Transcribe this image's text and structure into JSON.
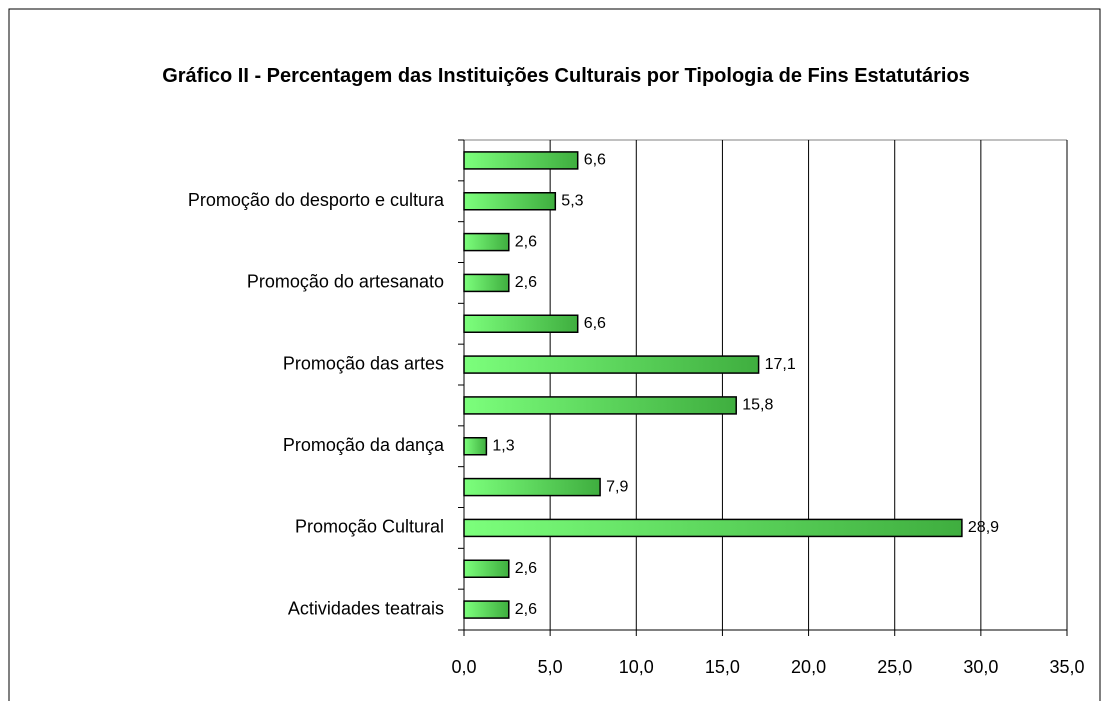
{
  "chart_data": {
    "type": "barh",
    "title": "Gráfico II - Percentagem das Instituições Culturais por Tipologia de Fins Estatutários",
    "categories": [
      null,
      "Promoção do desporto e cultura",
      null,
      "Promoção do artesanato",
      null,
      "Promoção das artes",
      null,
      "Promoção da dança",
      null,
      "Promoção Cultural",
      null,
      "Actividades teatrais"
    ],
    "values": [
      6.6,
      5.3,
      2.6,
      2.6,
      6.6,
      17.1,
      15.8,
      1.3,
      7.9,
      28.9,
      2.6,
      2.6
    ],
    "value_labels": [
      "6,6",
      "5,3",
      "2,6",
      "2,6",
      "6,6",
      "17,1",
      "15,8",
      "1,3",
      "7,9",
      "28,9",
      "2,6",
      "2,6"
    ],
    "color": "#3fae3f",
    "xlim": [
      0,
      35
    ],
    "xticks": [
      {
        "value": 0,
        "label": "0,0"
      },
      {
        "value": 5,
        "label": "5,0"
      },
      {
        "value": 10,
        "label": "10,0"
      },
      {
        "value": 15,
        "label": "15,0"
      },
      {
        "value": 20,
        "label": "20,0"
      },
      {
        "value": 25,
        "label": "25,0"
      },
      {
        "value": 30,
        "label": "30,0"
      },
      {
        "value": 35,
        "label": "35,0"
      }
    ],
    "grid": true
  }
}
